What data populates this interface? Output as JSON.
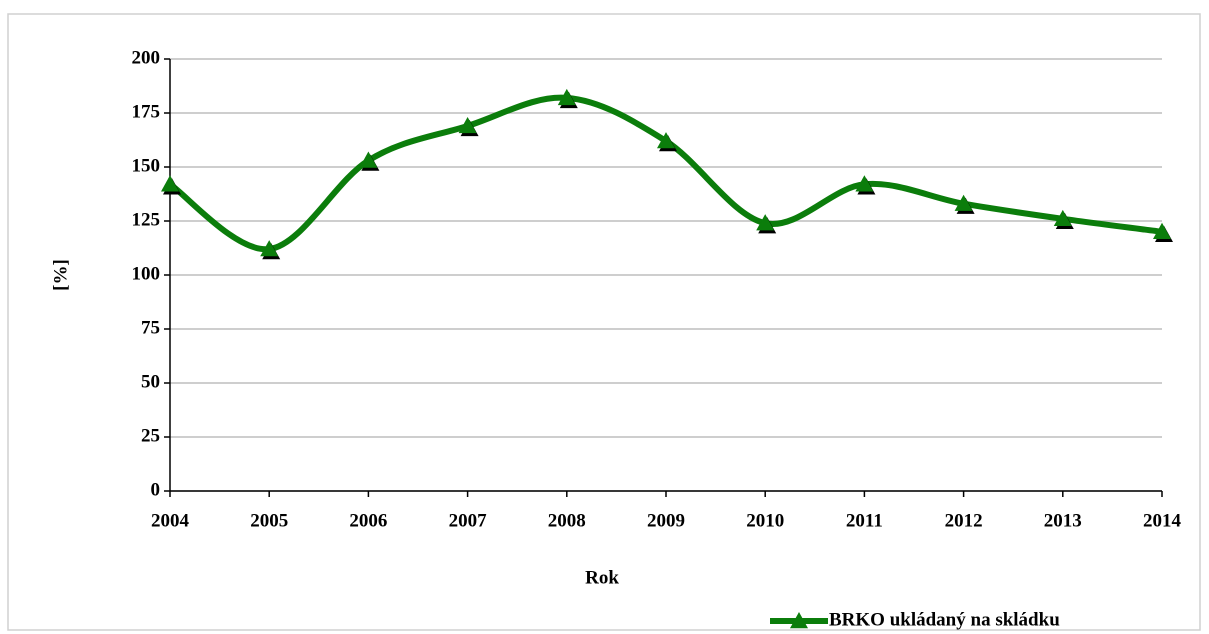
{
  "chart_data": {
    "type": "line",
    "categories": [
      "2004",
      "2005",
      "2006",
      "2007",
      "2008",
      "2009",
      "2010",
      "2011",
      "2012",
      "2013",
      "2014"
    ],
    "series": [
      {
        "name": "BRKO ukládaný na skládku",
        "color": "#0b7d0b",
        "values": [
          142,
          112,
          153,
          169,
          182,
          162,
          124,
          142,
          133,
          126,
          120
        ]
      }
    ],
    "xlabel": "Rok",
    "ylabel": "[%]",
    "ylim": [
      0,
      200
    ],
    "yticks": [
      0,
      25,
      50,
      75,
      100,
      125,
      150,
      175,
      200
    ],
    "grid": true,
    "smooth": true,
    "legend": "bottom-right"
  }
}
